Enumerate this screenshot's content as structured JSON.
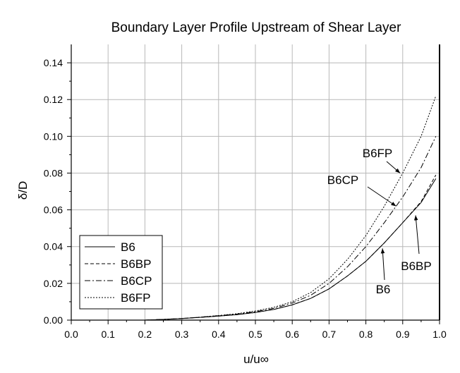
{
  "chart_data": {
    "type": "line",
    "title": "Boundary Layer Profile Upstream of Shear Layer",
    "xlabel": "u/u∞",
    "ylabel": "δ/D",
    "xlim": [
      0.0,
      1.0
    ],
    "ylim": [
      0.0,
      0.15
    ],
    "x_ticks": [
      "0.0",
      "0.1",
      "0.2",
      "0.3",
      "0.4",
      "0.5",
      "0.6",
      "0.7",
      "0.8",
      "0.9",
      "1.0"
    ],
    "y_ticks": [
      "0.00",
      "0.02",
      "0.04",
      "0.06",
      "0.08",
      "0.10",
      "0.12",
      "0.14"
    ],
    "grid": true,
    "legend_position": "bottom-left",
    "series": [
      {
        "name": "B6",
        "dash": "solid",
        "points": [
          [
            0.2,
            0.0
          ],
          [
            0.25,
            0.0004
          ],
          [
            0.3,
            0.0009
          ],
          [
            0.35,
            0.0015
          ],
          [
            0.4,
            0.0022
          ],
          [
            0.45,
            0.003
          ],
          [
            0.5,
            0.0042
          ],
          [
            0.55,
            0.0058
          ],
          [
            0.6,
            0.0083
          ],
          [
            0.65,
            0.0118
          ],
          [
            0.7,
            0.017
          ],
          [
            0.75,
            0.024
          ],
          [
            0.8,
            0.032
          ],
          [
            0.85,
            0.042
          ],
          [
            0.9,
            0.053
          ],
          [
            0.95,
            0.064
          ],
          [
            0.99,
            0.077
          ]
        ]
      },
      {
        "name": "B6BP",
        "dash": "dash",
        "points": [
          [
            0.2,
            0.0
          ],
          [
            0.25,
            0.0004
          ],
          [
            0.3,
            0.0009
          ],
          [
            0.35,
            0.0015
          ],
          [
            0.4,
            0.0022
          ],
          [
            0.45,
            0.003
          ],
          [
            0.5,
            0.0042
          ],
          [
            0.55,
            0.0058
          ],
          [
            0.6,
            0.0083
          ],
          [
            0.65,
            0.0118
          ],
          [
            0.7,
            0.017
          ],
          [
            0.75,
            0.024
          ],
          [
            0.8,
            0.032
          ],
          [
            0.85,
            0.042
          ],
          [
            0.9,
            0.053
          ],
          [
            0.95,
            0.0645
          ],
          [
            0.99,
            0.079
          ]
        ]
      },
      {
        "name": "B6CP",
        "dash": "dashdot",
        "points": [
          [
            0.2,
            0.0
          ],
          [
            0.25,
            0.0004
          ],
          [
            0.3,
            0.0009
          ],
          [
            0.35,
            0.0016
          ],
          [
            0.4,
            0.0024
          ],
          [
            0.45,
            0.0033
          ],
          [
            0.5,
            0.0046
          ],
          [
            0.55,
            0.0064
          ],
          [
            0.6,
            0.0093
          ],
          [
            0.65,
            0.0135
          ],
          [
            0.7,
            0.02
          ],
          [
            0.75,
            0.029
          ],
          [
            0.8,
            0.04
          ],
          [
            0.85,
            0.053
          ],
          [
            0.9,
            0.067
          ],
          [
            0.95,
            0.083
          ],
          [
            0.99,
            0.1
          ]
        ]
      },
      {
        "name": "B6FP",
        "dash": "dot",
        "points": [
          [
            0.2,
            0.0
          ],
          [
            0.25,
            0.0004
          ],
          [
            0.3,
            0.0009
          ],
          [
            0.35,
            0.0016
          ],
          [
            0.4,
            0.0025
          ],
          [
            0.45,
            0.0035
          ],
          [
            0.5,
            0.005
          ],
          [
            0.55,
            0.007
          ],
          [
            0.6,
            0.01
          ],
          [
            0.65,
            0.015
          ],
          [
            0.7,
            0.0225
          ],
          [
            0.75,
            0.033
          ],
          [
            0.8,
            0.046
          ],
          [
            0.85,
            0.062
          ],
          [
            0.9,
            0.08
          ],
          [
            0.95,
            0.1
          ],
          [
            0.99,
            0.122
          ]
        ]
      }
    ],
    "annotations": [
      {
        "text": "B6FP",
        "arrow_to": [
          0.893,
          0.08
        ]
      },
      {
        "text": "B6CP",
        "arrow_to": [
          0.882,
          0.062
        ]
      },
      {
        "text": "B6BP",
        "arrow_to": [
          0.935,
          0.057
        ]
      },
      {
        "text": "B6",
        "arrow_to": [
          0.845,
          0.039
        ]
      }
    ]
  }
}
